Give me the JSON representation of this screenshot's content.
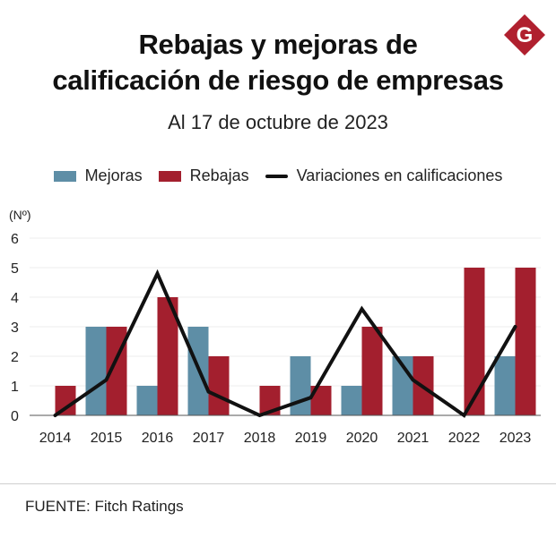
{
  "header": {
    "title_line1": "Rebajas y mejoras de",
    "title_line2": "calificación de riesgo de empresas",
    "subtitle": "Al 17 de octubre de 2023",
    "logo_letter": "G"
  },
  "legend": {
    "mejoras": "Mejoras",
    "rebajas": "Rebajas",
    "variaciones": "Variaciones en calificaciones"
  },
  "colors": {
    "mejoras": "#5e8ea6",
    "rebajas": "#a31f2e",
    "line": "#111111",
    "logo": "#b0202f"
  },
  "chart_data": {
    "type": "bar",
    "categories": [
      "2014",
      "2015",
      "2016",
      "2017",
      "2018",
      "2019",
      "2020",
      "2021",
      "2022",
      "2023"
    ],
    "series": [
      {
        "name": "Mejoras",
        "type": "bar",
        "values": [
          0,
          3,
          1,
          3,
          0,
          2,
          1,
          2,
          0,
          2
        ]
      },
      {
        "name": "Rebajas",
        "type": "bar",
        "values": [
          1,
          3,
          4,
          2,
          1,
          1,
          3,
          2,
          5,
          5
        ]
      },
      {
        "name": "Variaciones en calificaciones",
        "type": "line",
        "values": [
          0,
          1.2,
          4.8,
          0.8,
          0,
          0.6,
          3.6,
          1.2,
          0,
          3
        ]
      }
    ],
    "y_unit_label": "(Nº)",
    "yticks": [
      0,
      1,
      2,
      3,
      4,
      5,
      6
    ],
    "ylim": [
      0,
      6
    ],
    "legend_position": "top"
  },
  "footer": {
    "source": "FUENTE: Fitch Ratings"
  }
}
